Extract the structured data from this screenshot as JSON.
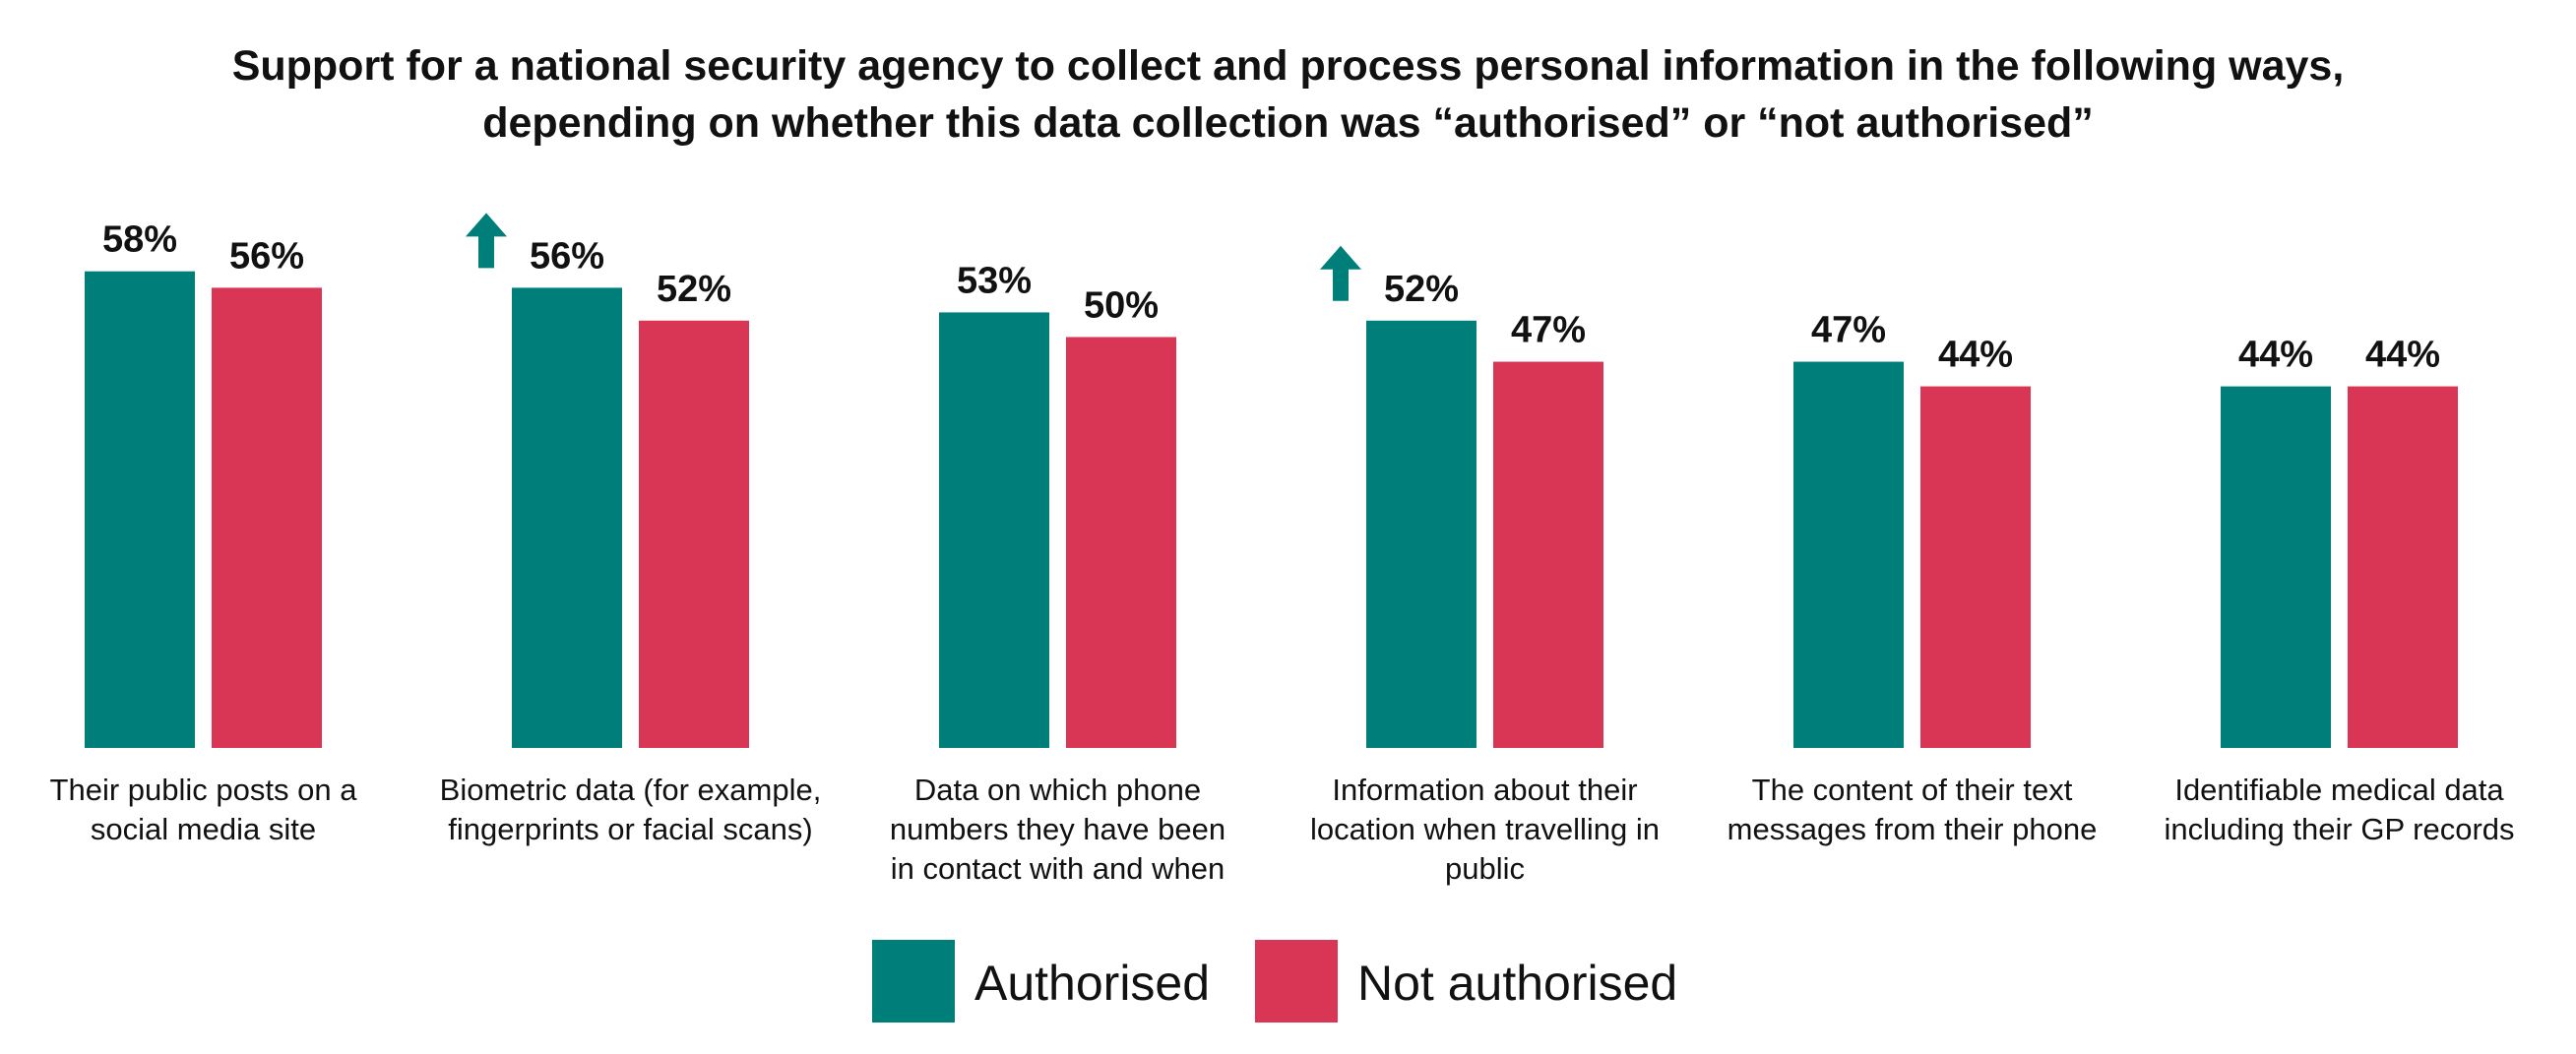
{
  "colors": {
    "authorised": "#007F7A",
    "not_authorised": "#D83654",
    "arrow": "#007F7A",
    "text": "#111111"
  },
  "chart_data": {
    "type": "bar",
    "title_lines": [
      "Support for a national security agency to collect and process personal information in the following ways,",
      "depending on whether this data collection was “authorised” or “not authorised”"
    ],
    "categories": [
      [
        "Their public posts on a",
        "social media site"
      ],
      [
        "Biometric data (for example,",
        "fingerprints or facial scans)"
      ],
      [
        "Data on which phone",
        "numbers they have been",
        "in contact with and when"
      ],
      [
        "Information about their",
        "location when travelling in",
        "public"
      ],
      [
        "The content of their text",
        "messages from their phone"
      ],
      [
        "Identifiable medical data",
        "including their GP records"
      ]
    ],
    "series": [
      {
        "name": "Authorised",
        "values": [
          58,
          56,
          53,
          52,
          47,
          44
        ],
        "labels": [
          "58%",
          "56%",
          "53%",
          "52%",
          "47%",
          "44%"
        ]
      },
      {
        "name": "Not authorised",
        "values": [
          56,
          52,
          50,
          47,
          44,
          44
        ],
        "labels": [
          "56%",
          "52%",
          "50%",
          "47%",
          "44%",
          "44%"
        ]
      }
    ],
    "arrow_indicators": [
      false,
      true,
      false,
      true,
      false,
      false
    ],
    "legend_position": "bottom",
    "grid": false,
    "ylim": [
      0,
      60
    ]
  }
}
